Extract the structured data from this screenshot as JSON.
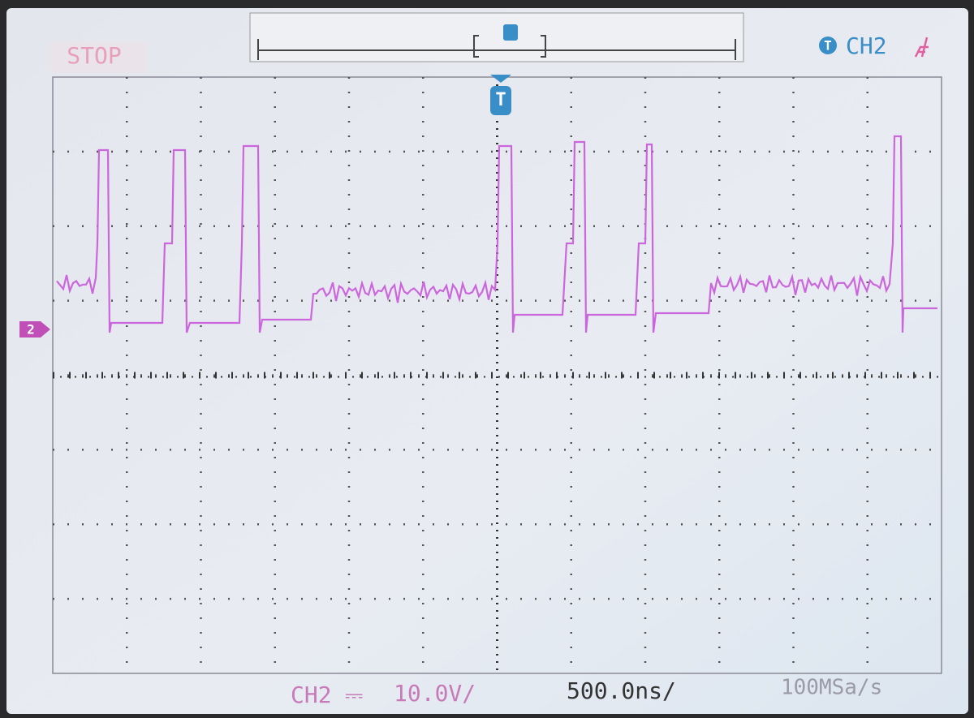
{
  "status": "STOP",
  "trigger": {
    "icon": "T",
    "source": "CH2"
  },
  "trigger_marker": "T",
  "channel_marker": "2",
  "footer": {
    "channel": "CH2",
    "coupling": "⎓",
    "scale": "10.0V/",
    "timebase": "500.0ns/",
    "sample_rate": "100MSa/s"
  }
}
